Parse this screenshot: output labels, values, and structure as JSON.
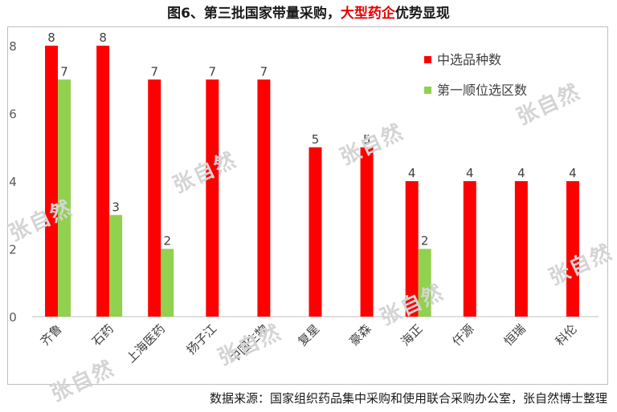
{
  "header": {
    "title_prefix": "图6、第三批国家带量采购，",
    "title_highlight": "大型药企",
    "title_suffix": "优势显现"
  },
  "source": "数据来源：国家组织药品集中采购和使用联合采购办公室，张自然博士整理",
  "watermark": "张自然",
  "chart_data": {
    "type": "bar",
    "categories": [
      "齐鲁",
      "石药",
      "上海医药",
      "扬子江",
      "中国生物",
      "复星",
      "豪森",
      "海正",
      "仟源",
      "恒瑞",
      "科伦"
    ],
    "series": [
      {
        "name": "中选品种数",
        "color": "#ff0000",
        "values": [
          8,
          8,
          7,
          7,
          7,
          5,
          5,
          4,
          4,
          4,
          4
        ]
      },
      {
        "name": "第一顺位选区数",
        "color": "#92d050",
        "values": [
          7,
          3,
          2,
          null,
          null,
          null,
          null,
          2,
          null,
          null,
          null
        ]
      }
    ],
    "yticks": [
      0,
      2,
      4,
      6,
      8
    ],
    "ylim": [
      0,
      8.4
    ],
    "grid": false,
    "legend_position": "top-right"
  }
}
